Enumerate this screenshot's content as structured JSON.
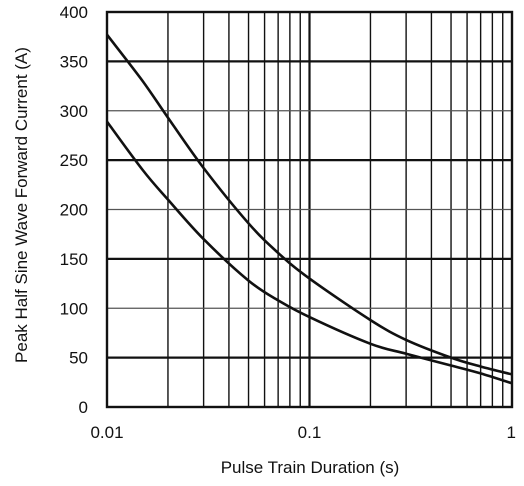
{
  "chart_data": {
    "type": "line",
    "title": "",
    "xlabel": "Pulse Train Duration (s)",
    "ylabel": "Peak Half Sine Wave Forward Current (A)",
    "x_scale": "log",
    "xlim": [
      0.01,
      1
    ],
    "ylim": [
      0,
      400
    ],
    "x_tick_labels": [
      "0.01",
      "0.1",
      "1"
    ],
    "y_tick_labels": [
      "0",
      "50",
      "100",
      "150",
      "200",
      "250",
      "300",
      "350",
      "400"
    ],
    "x_tick_values": [
      0.01,
      0.1,
      1
    ],
    "y_tick_values": [
      0,
      50,
      100,
      150,
      200,
      250,
      300,
      350,
      400
    ],
    "grid": true,
    "series": [
      {
        "x": [
          0.01,
          0.015,
          0.02,
          0.03,
          0.05,
          0.07,
          0.1,
          0.2,
          0.3,
          0.5,
          0.7,
          1.0
        ],
        "y": [
          377,
          330,
          293,
          242,
          186,
          156,
          130,
          88,
          68,
          50,
          41,
          33
        ]
      },
      {
        "x": [
          0.01,
          0.015,
          0.02,
          0.03,
          0.05,
          0.07,
          0.1,
          0.2,
          0.3,
          0.5,
          0.7,
          1.0
        ],
        "y": [
          289,
          240,
          210,
          170,
          128,
          108,
          91,
          64,
          54,
          42,
          34,
          24
        ]
      }
    ],
    "colors": {
      "curve": "#111111",
      "grid": "#111111",
      "major_h_grid": "#111111"
    }
  }
}
